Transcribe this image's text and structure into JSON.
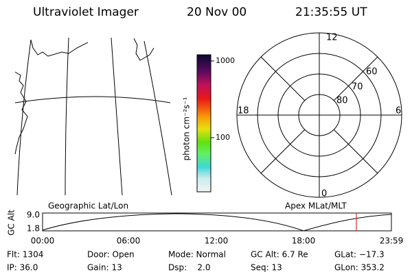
{
  "header": {
    "title": "Ultraviolet Imager",
    "date": "20 Nov 00",
    "time": "21:35:55 UT"
  },
  "colorbar": {
    "label": "photon cm⁻²s⁻¹",
    "ticks": [
      "1000",
      "100"
    ]
  },
  "polar": {
    "mlt_labels": [
      "12",
      "18",
      "6",
      "0"
    ],
    "lat_labels": [
      "60",
      "70",
      "80"
    ]
  },
  "altitude_plot": {
    "left_title": "Geographic Lat/Lon",
    "right_title": "Apex MLat/MLT",
    "y_label": "GC Alt",
    "y_ticks": [
      "9.0",
      "1.8"
    ],
    "x_ticks": [
      "00:00",
      "06:00",
      "12:00",
      "18:00",
      "23:59"
    ]
  },
  "status": {
    "rows": [
      [
        "Flt: 1304",
        "Door: Open",
        "Mode: Normal",
        "GC Alt: 6.7 Re",
        "GLat: −17.3"
      ],
      [
        "IP: 36.0",
        "Gain: 13",
        "Dsp:    2.0",
        "Seq: 13",
        "GLon: 353.2"
      ]
    ]
  }
}
